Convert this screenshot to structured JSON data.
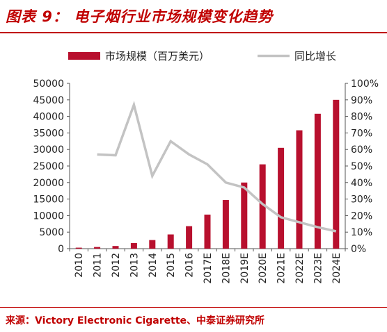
{
  "figure": {
    "title": "图表 9： 电子烟行业市场规模变化趋势",
    "source": "来源：Victory Electronic Cigarette、中泰证券研究所"
  },
  "colors": {
    "bar": "#b8102e",
    "line": "#c3c3c3",
    "accent": "#c00000",
    "axis": "#555555"
  },
  "chart_data": {
    "type": "bar+line",
    "title": "图表 9： 电子烟行业市场规模变化趋势",
    "categories": [
      "2010",
      "2011",
      "2012",
      "2013",
      "2014",
      "2015",
      "2016",
      "2017E",
      "2018E",
      "2019E",
      "2020E",
      "2021E",
      "2022E",
      "2023E",
      "2024E"
    ],
    "series": [
      {
        "name": "市场规模（百万美元）",
        "type": "bar",
        "axis": "left",
        "values": [
          300,
          500,
          800,
          1700,
          2600,
          4300,
          6800,
          10300,
          14700,
          20000,
          25500,
          30500,
          35800,
          40800,
          45000
        ]
      },
      {
        "name": "同比增长",
        "type": "line",
        "axis": "right",
        "values": [
          null,
          57,
          56.5,
          87,
          44,
          65,
          57,
          51,
          40,
          37,
          27,
          19,
          16,
          13,
          10.5
        ]
      }
    ],
    "y_left": {
      "min": 0,
      "max": 50000,
      "ticks": [
        0,
        5000,
        10000,
        15000,
        20000,
        25000,
        30000,
        35000,
        40000,
        45000,
        50000
      ]
    },
    "y_right": {
      "min": 0,
      "max": 100,
      "unit": "%",
      "ticks": [
        "0%",
        "10%",
        "20%",
        "30%",
        "40%",
        "50%",
        "60%",
        "70%",
        "80%",
        "90%",
        "100%"
      ]
    },
    "legend_position": "top",
    "grid": false
  }
}
